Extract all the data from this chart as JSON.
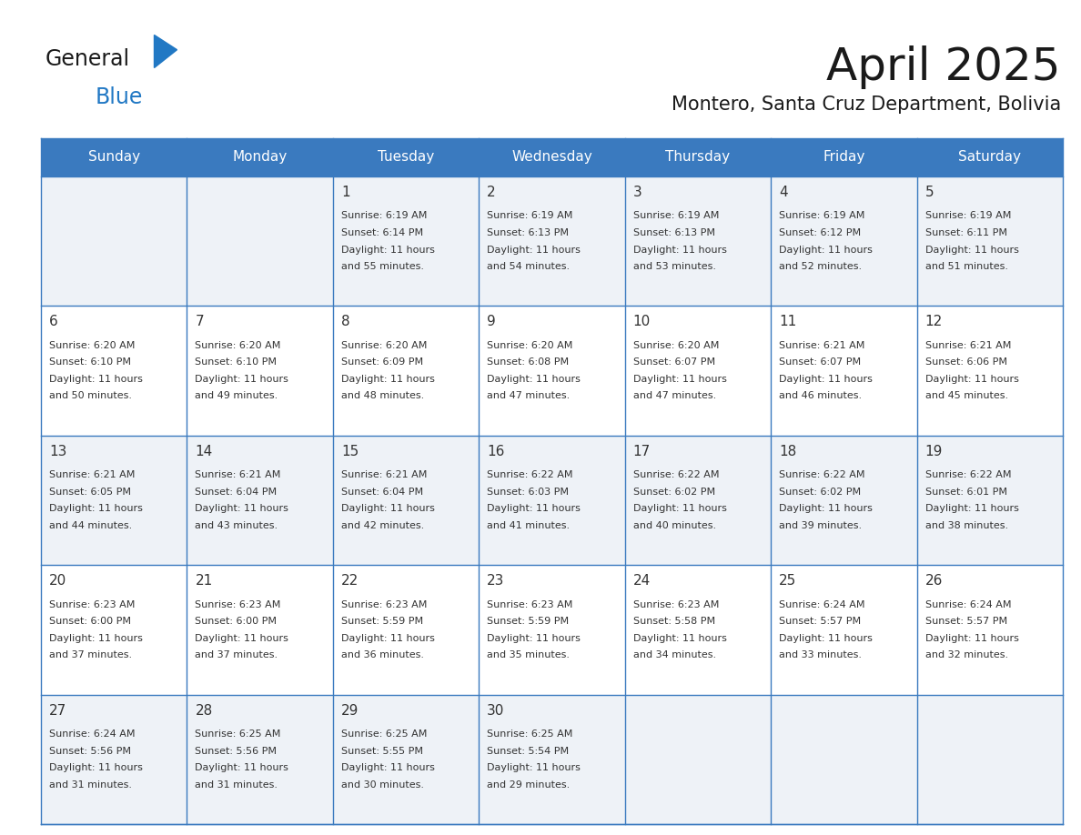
{
  "title": "April 2025",
  "subtitle": "Montero, Santa Cruz Department, Bolivia",
  "header_bg_color": "#3a7abf",
  "header_text_color": "#ffffff",
  "day_names": [
    "Sunday",
    "Monday",
    "Tuesday",
    "Wednesday",
    "Thursday",
    "Friday",
    "Saturday"
  ],
  "cell_bg_even": "#eef2f7",
  "cell_bg_odd": "#ffffff",
  "border_color": "#3a7abf",
  "text_color": "#333333",
  "title_color": "#1a1a1a",
  "subtitle_color": "#1a1a1a",
  "logo_color_general": "#1a1a1a",
  "logo_color_blue": "#2178c4",
  "logo_triangle_color": "#2178c4",
  "logo_text_general": "General",
  "logo_text_blue": "Blue",
  "days": [
    {
      "day": 1,
      "col": 2,
      "row": 0,
      "sunrise": "6:19 AM",
      "sunset": "6:14 PM",
      "daylight_min": "55"
    },
    {
      "day": 2,
      "col": 3,
      "row": 0,
      "sunrise": "6:19 AM",
      "sunset": "6:13 PM",
      "daylight_min": "54"
    },
    {
      "day": 3,
      "col": 4,
      "row": 0,
      "sunrise": "6:19 AM",
      "sunset": "6:13 PM",
      "daylight_min": "53"
    },
    {
      "day": 4,
      "col": 5,
      "row": 0,
      "sunrise": "6:19 AM",
      "sunset": "6:12 PM",
      "daylight_min": "52"
    },
    {
      "day": 5,
      "col": 6,
      "row": 0,
      "sunrise": "6:19 AM",
      "sunset": "6:11 PM",
      "daylight_min": "51"
    },
    {
      "day": 6,
      "col": 0,
      "row": 1,
      "sunrise": "6:20 AM",
      "sunset": "6:10 PM",
      "daylight_min": "50"
    },
    {
      "day": 7,
      "col": 1,
      "row": 1,
      "sunrise": "6:20 AM",
      "sunset": "6:10 PM",
      "daylight_min": "49"
    },
    {
      "day": 8,
      "col": 2,
      "row": 1,
      "sunrise": "6:20 AM",
      "sunset": "6:09 PM",
      "daylight_min": "48"
    },
    {
      "day": 9,
      "col": 3,
      "row": 1,
      "sunrise": "6:20 AM",
      "sunset": "6:08 PM",
      "daylight_min": "47"
    },
    {
      "day": 10,
      "col": 4,
      "row": 1,
      "sunrise": "6:20 AM",
      "sunset": "6:07 PM",
      "daylight_min": "47"
    },
    {
      "day": 11,
      "col": 5,
      "row": 1,
      "sunrise": "6:21 AM",
      "sunset": "6:07 PM",
      "daylight_min": "46"
    },
    {
      "day": 12,
      "col": 6,
      "row": 1,
      "sunrise": "6:21 AM",
      "sunset": "6:06 PM",
      "daylight_min": "45"
    },
    {
      "day": 13,
      "col": 0,
      "row": 2,
      "sunrise": "6:21 AM",
      "sunset": "6:05 PM",
      "daylight_min": "44"
    },
    {
      "day": 14,
      "col": 1,
      "row": 2,
      "sunrise": "6:21 AM",
      "sunset": "6:04 PM",
      "daylight_min": "43"
    },
    {
      "day": 15,
      "col": 2,
      "row": 2,
      "sunrise": "6:21 AM",
      "sunset": "6:04 PM",
      "daylight_min": "42"
    },
    {
      "day": 16,
      "col": 3,
      "row": 2,
      "sunrise": "6:22 AM",
      "sunset": "6:03 PM",
      "daylight_min": "41"
    },
    {
      "day": 17,
      "col": 4,
      "row": 2,
      "sunrise": "6:22 AM",
      "sunset": "6:02 PM",
      "daylight_min": "40"
    },
    {
      "day": 18,
      "col": 5,
      "row": 2,
      "sunrise": "6:22 AM",
      "sunset": "6:02 PM",
      "daylight_min": "39"
    },
    {
      "day": 19,
      "col": 6,
      "row": 2,
      "sunrise": "6:22 AM",
      "sunset": "6:01 PM",
      "daylight_min": "38"
    },
    {
      "day": 20,
      "col": 0,
      "row": 3,
      "sunrise": "6:23 AM",
      "sunset": "6:00 PM",
      "daylight_min": "37"
    },
    {
      "day": 21,
      "col": 1,
      "row": 3,
      "sunrise": "6:23 AM",
      "sunset": "6:00 PM",
      "daylight_min": "37"
    },
    {
      "day": 22,
      "col": 2,
      "row": 3,
      "sunrise": "6:23 AM",
      "sunset": "5:59 PM",
      "daylight_min": "36"
    },
    {
      "day": 23,
      "col": 3,
      "row": 3,
      "sunrise": "6:23 AM",
      "sunset": "5:59 PM",
      "daylight_min": "35"
    },
    {
      "day": 24,
      "col": 4,
      "row": 3,
      "sunrise": "6:23 AM",
      "sunset": "5:58 PM",
      "daylight_min": "34"
    },
    {
      "day": 25,
      "col": 5,
      "row": 3,
      "sunrise": "6:24 AM",
      "sunset": "5:57 PM",
      "daylight_min": "33"
    },
    {
      "day": 26,
      "col": 6,
      "row": 3,
      "sunrise": "6:24 AM",
      "sunset": "5:57 PM",
      "daylight_min": "32"
    },
    {
      "day": 27,
      "col": 0,
      "row": 4,
      "sunrise": "6:24 AM",
      "sunset": "5:56 PM",
      "daylight_min": "31"
    },
    {
      "day": 28,
      "col": 1,
      "row": 4,
      "sunrise": "6:25 AM",
      "sunset": "5:56 PM",
      "daylight_min": "31"
    },
    {
      "day": 29,
      "col": 2,
      "row": 4,
      "sunrise": "6:25 AM",
      "sunset": "5:55 PM",
      "daylight_min": "30"
    },
    {
      "day": 30,
      "col": 3,
      "row": 4,
      "sunrise": "6:25 AM",
      "sunset": "5:54 PM",
      "daylight_min": "29"
    }
  ]
}
